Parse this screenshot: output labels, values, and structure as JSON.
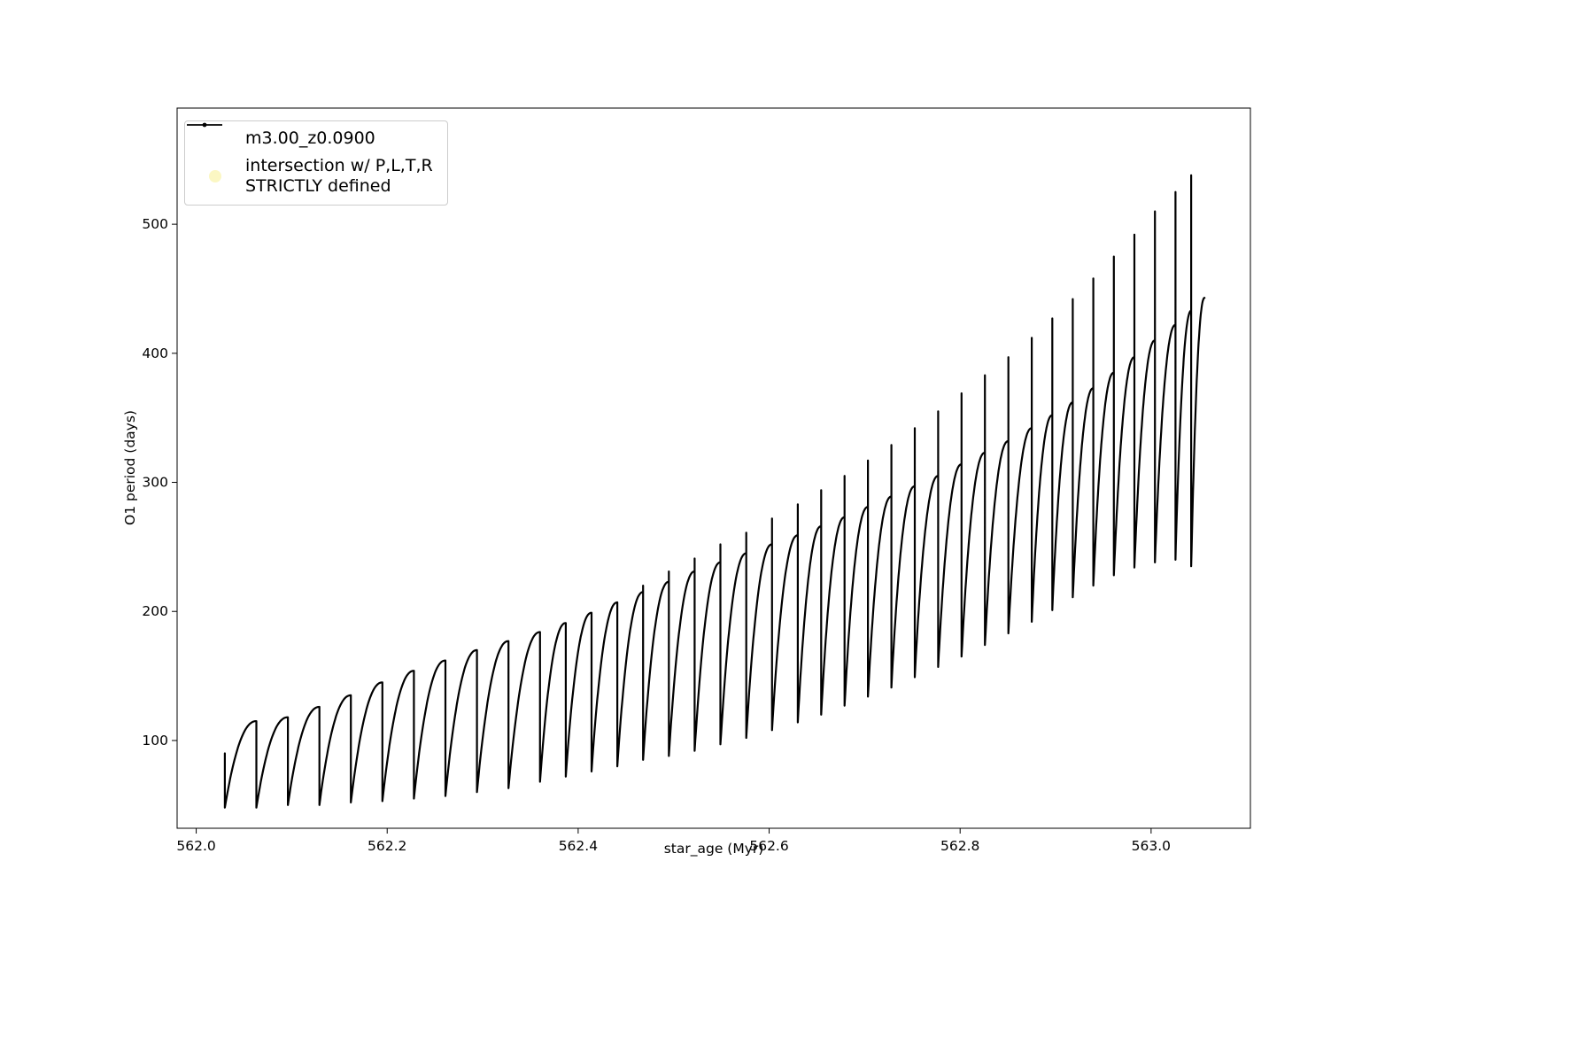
{
  "window": {
    "background": "#ffffff"
  },
  "legend": {
    "entries": [
      {
        "label": "m3.00_z0.0900",
        "marker": "line-with-dot",
        "color": "#000000"
      },
      {
        "label_line1": "intersection w/ P,L,T,R",
        "label_line2": "STRICTLY defined",
        "marker": "circle",
        "color": "#fbf6bd"
      }
    ]
  },
  "chart_data": {
    "type": "line",
    "series": [
      {
        "name": "m3.00_z0.0900",
        "color": "#000000",
        "marker": "point",
        "linestyle": "solid"
      }
    ],
    "title": "",
    "xlabel": "star_age (Myr)",
    "ylabel": "O1 period (days)",
    "x_ticks": [
      "562.0",
      "562.2",
      "562.4",
      "562.6",
      "562.8",
      "563.0"
    ],
    "y_ticks": [
      "100",
      "200",
      "300",
      "400",
      "500"
    ],
    "xlim": [
      561.98,
      563.104
    ],
    "ylim": [
      32,
      590
    ],
    "grid": false,
    "legend_position": "upper left",
    "start_point": {
      "x": 562.03,
      "y": 90
    },
    "end_x": 563.056,
    "rise_exponent": 2.2,
    "cycle_format": [
      "x_start",
      "trough",
      "shoulder_max",
      "spike_peak"
    ],
    "cycles": [
      [
        562.03,
        48,
        115,
        115
      ],
      [
        562.063,
        48,
        118,
        118
      ],
      [
        562.096,
        50,
        126,
        126
      ],
      [
        562.129,
        50,
        135,
        135
      ],
      [
        562.162,
        52,
        145,
        145
      ],
      [
        562.195,
        53,
        154,
        154
      ],
      [
        562.228,
        55,
        162,
        162
      ],
      [
        562.261,
        57,
        170,
        170
      ],
      [
        562.294,
        60,
        177,
        177
      ],
      [
        562.327,
        63,
        184,
        184
      ],
      [
        562.36,
        68,
        191,
        191
      ],
      [
        562.387,
        72,
        199,
        199
      ],
      [
        562.414,
        76,
        207,
        207
      ],
      [
        562.441,
        80,
        215,
        220
      ],
      [
        562.468,
        85,
        223,
        231
      ],
      [
        562.495,
        88,
        231,
        241
      ],
      [
        562.522,
        92,
        238,
        252
      ],
      [
        562.549,
        97,
        245,
        261
      ],
      [
        562.576,
        102,
        252,
        272
      ],
      [
        562.603,
        108,
        259,
        283
      ],
      [
        562.63,
        114,
        266,
        294
      ],
      [
        562.6545,
        120,
        273,
        305
      ],
      [
        562.679,
        127,
        281,
        317
      ],
      [
        562.7035,
        134,
        289,
        329
      ],
      [
        562.728,
        141,
        297,
        342
      ],
      [
        562.7525,
        149,
        305,
        355
      ],
      [
        562.777,
        157,
        314,
        369
      ],
      [
        562.8015,
        165,
        323,
        383
      ],
      [
        562.826,
        174,
        332,
        397
      ],
      [
        562.8505,
        183,
        342,
        412
      ],
      [
        562.875,
        192,
        352,
        427
      ],
      [
        562.8965,
        201,
        362,
        442
      ],
      [
        562.918,
        211,
        373,
        458
      ],
      [
        562.9395,
        220,
        385,
        475
      ],
      [
        562.961,
        228,
        397,
        492
      ],
      [
        562.9825,
        234,
        410,
        510
      ],
      [
        563.004,
        238,
        422,
        525
      ],
      [
        563.0255,
        240,
        433,
        538
      ],
      [
        563.042,
        235,
        443,
        443
      ]
    ]
  }
}
